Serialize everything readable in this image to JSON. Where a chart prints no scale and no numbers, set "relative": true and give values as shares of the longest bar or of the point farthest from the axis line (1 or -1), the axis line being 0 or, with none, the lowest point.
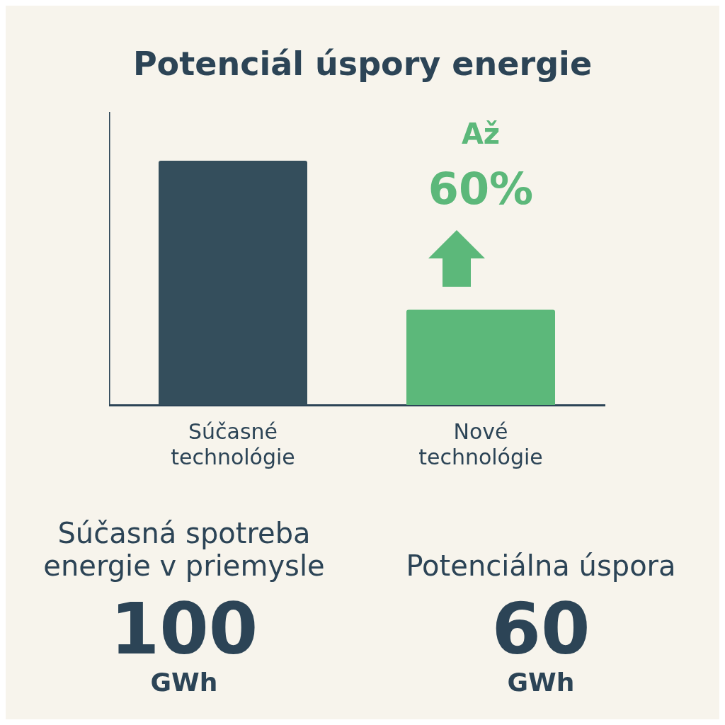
{
  "chart_data": {
    "type": "bar",
    "title": "Potenciál úspory energie",
    "relative": true,
    "categories": [
      "Súčasné technológie",
      "Nové technológie"
    ],
    "values": [
      1,
      0.39
    ],
    "colors": [
      "#344e5c",
      "#5cb87a"
    ],
    "grid": false,
    "legend": false,
    "annotations": [
      "Až",
      "60%",
      "Súčasná spotreba energie v priemysle",
      "100",
      "GWh",
      "Potenciálna úspora",
      "60",
      "GWh"
    ]
  }
}
